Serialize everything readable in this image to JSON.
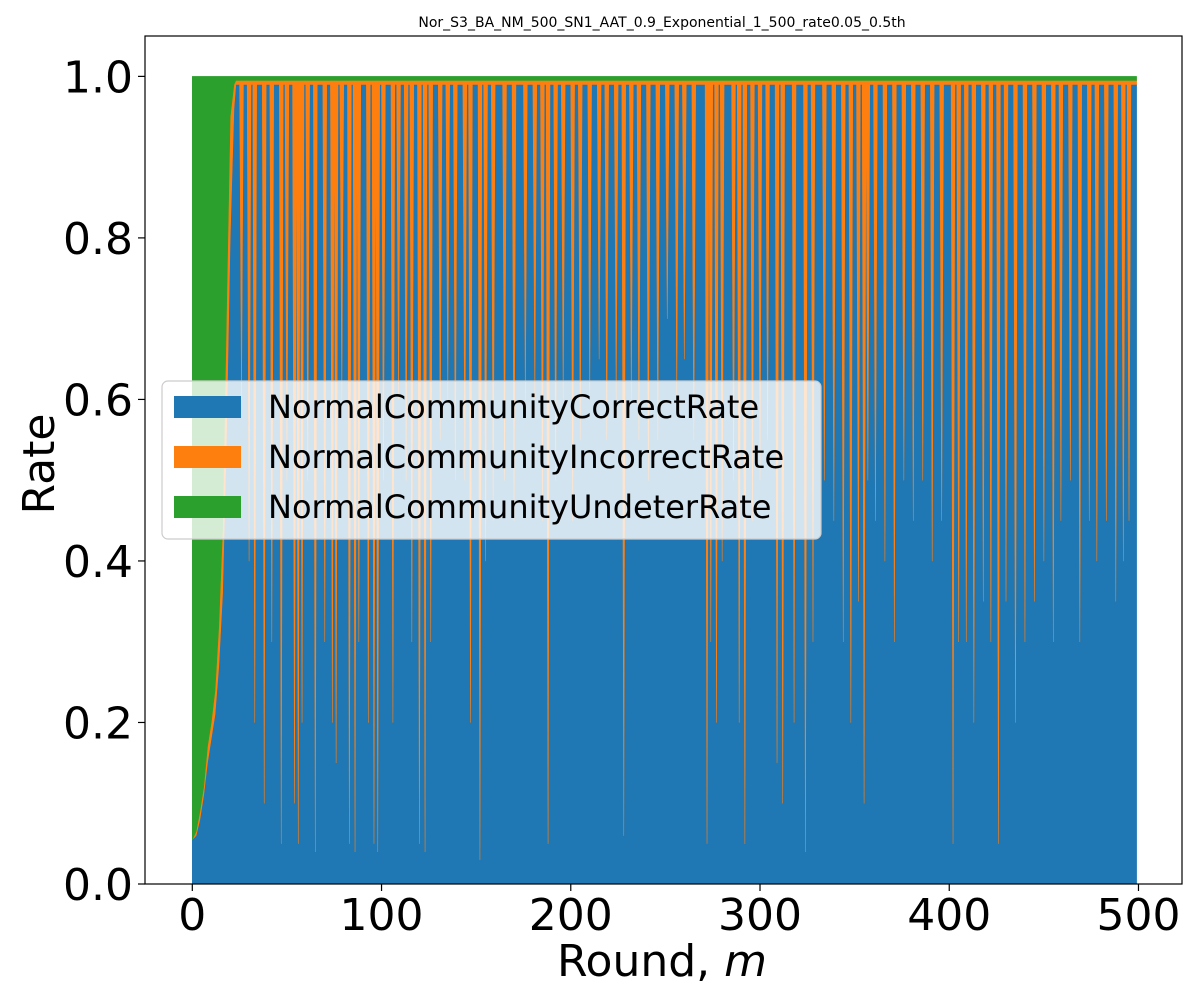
{
  "chart_data": {
    "type": "area",
    "stacked": true,
    "title": "Nor_S3_BA_NM_500_SN1_AAT_0.9_Exponential_1_500_rate0.05_0.5th",
    "xlabel": "Round, ",
    "xlabel_italic": "m",
    "ylabel": "Rate",
    "xlim": [
      -25,
      523
    ],
    "ylim": [
      0.0,
      1.05
    ],
    "x_range": [
      0,
      499
    ],
    "x_ticks": [
      0,
      100,
      200,
      300,
      400,
      500
    ],
    "x_tick_labels": [
      "0",
      "100",
      "200",
      "300",
      "400",
      "500"
    ],
    "y_ticks": [
      0.0,
      0.2,
      0.4,
      0.6,
      0.8,
      1.0
    ],
    "y_tick_labels": [
      "0.0",
      "0.2",
      "0.4",
      "0.6",
      "0.8",
      "1.0"
    ],
    "grid": false,
    "legend_position": "center-left",
    "series": [
      {
        "name": "NormalCommunityCorrectRate",
        "color": "#1f77b4"
      },
      {
        "name": "NormalCommunityIncorrectRate",
        "color": "#ff7f0e"
      },
      {
        "name": "NormalCommunityUndeterRate",
        "color": "#2ca02c"
      }
    ],
    "ramp": [
      [
        0,
        0.055,
        0.0,
        0.945
      ],
      [
        2,
        0.06,
        0.005,
        0.935
      ],
      [
        4,
        0.08,
        0.01,
        0.91
      ],
      [
        6,
        0.11,
        0.01,
        0.88
      ],
      [
        8,
        0.15,
        0.02,
        0.83
      ],
      [
        10,
        0.18,
        0.02,
        0.8
      ],
      [
        12,
        0.21,
        0.03,
        0.76
      ],
      [
        14,
        0.27,
        0.05,
        0.68
      ],
      [
        16,
        0.36,
        0.08,
        0.56
      ],
      [
        18,
        0.55,
        0.15,
        0.3
      ],
      [
        20,
        0.8,
        0.15,
        0.05
      ],
      [
        22,
        0.96,
        0.03,
        0.01
      ],
      [
        23,
        0.99,
        0.005,
        0.005
      ]
    ],
    "steady_state": {
      "correct": 0.99,
      "incorrect": 0.005,
      "undeter": 0.005
    },
    "dips": [
      [
        26,
        0.6
      ],
      [
        30,
        0.4
      ],
      [
        33,
        0.2
      ],
      [
        38,
        0.1
      ],
      [
        42,
        0.3
      ],
      [
        47,
        0.05
      ],
      [
        50,
        0.5
      ],
      [
        54,
        0.1
      ],
      [
        56,
        0.05
      ],
      [
        58,
        0.2
      ],
      [
        61,
        0.5
      ],
      [
        65,
        0.04
      ],
      [
        70,
        0.3
      ],
      [
        74,
        0.2
      ],
      [
        76,
        0.15
      ],
      [
        79,
        0.6
      ],
      [
        83,
        0.05
      ],
      [
        86,
        0.04
      ],
      [
        88,
        0.3
      ],
      [
        93,
        0.2
      ],
      [
        96,
        0.05
      ],
      [
        98,
        0.04
      ],
      [
        101,
        0.5
      ],
      [
        106,
        0.2
      ],
      [
        109,
        0.6
      ],
      [
        113,
        0.5
      ],
      [
        116,
        0.3
      ],
      [
        120,
        0.05
      ],
      [
        123,
        0.04
      ],
      [
        126,
        0.3
      ],
      [
        131,
        0.55
      ],
      [
        135,
        0.6
      ],
      [
        139,
        0.5
      ],
      [
        144,
        0.5
      ],
      [
        147,
        0.2
      ],
      [
        152,
        0.03
      ],
      [
        155,
        0.4
      ],
      [
        159,
        0.45
      ],
      [
        165,
        0.5
      ],
      [
        170,
        0.45
      ],
      [
        176,
        0.6
      ],
      [
        181,
        0.6
      ],
      [
        185,
        0.45
      ],
      [
        188,
        0.05
      ],
      [
        192,
        0.5
      ],
      [
        196,
        0.6
      ],
      [
        201,
        0.45
      ],
      [
        205,
        0.55
      ],
      [
        210,
        0.6
      ],
      [
        215,
        0.65
      ],
      [
        219,
        0.55
      ],
      [
        224,
        0.6
      ],
      [
        228,
        0.06
      ],
      [
        232,
        0.6
      ],
      [
        236,
        0.55
      ],
      [
        241,
        0.5
      ],
      [
        246,
        0.55
      ],
      [
        251,
        0.7
      ],
      [
        256,
        0.6
      ],
      [
        260,
        0.65
      ],
      [
        265,
        0.55
      ],
      [
        272,
        0.05
      ],
      [
        274,
        0.3
      ],
      [
        277,
        0.2
      ],
      [
        280,
        0.4
      ],
      [
        286,
        0.5
      ],
      [
        289,
        0.2
      ],
      [
        292,
        0.05
      ],
      [
        296,
        0.45
      ],
      [
        300,
        0.5
      ],
      [
        304,
        0.55
      ],
      [
        309,
        0.15
      ],
      [
        312,
        0.1
      ],
      [
        318,
        0.2
      ],
      [
        324,
        0.04
      ],
      [
        328,
        0.3
      ],
      [
        334,
        0.5
      ],
      [
        339,
        0.45
      ],
      [
        344,
        0.3
      ],
      [
        348,
        0.2
      ],
      [
        352,
        0.35
      ],
      [
        355,
        0.1
      ],
      [
        357,
        0.5
      ],
      [
        361,
        0.45
      ],
      [
        366,
        0.4
      ],
      [
        371,
        0.3
      ],
      [
        376,
        0.5
      ],
      [
        381,
        0.45
      ],
      [
        386,
        0.5
      ],
      [
        391,
        0.4
      ],
      [
        396,
        0.45
      ],
      [
        402,
        0.05
      ],
      [
        405,
        0.3
      ],
      [
        409,
        0.3
      ],
      [
        413,
        0.2
      ],
      [
        418,
        0.35
      ],
      [
        422,
        0.3
      ],
      [
        426,
        0.05
      ],
      [
        430,
        0.35
      ],
      [
        435,
        0.2
      ],
      [
        440,
        0.3
      ],
      [
        445,
        0.35
      ],
      [
        450,
        0.4
      ],
      [
        455,
        0.3
      ],
      [
        459,
        0.45
      ],
      [
        464,
        0.5
      ],
      [
        469,
        0.3
      ],
      [
        474,
        0.45
      ],
      [
        478,
        0.4
      ],
      [
        483,
        0.45
      ],
      [
        488,
        0.35
      ],
      [
        492,
        0.4
      ],
      [
        495,
        0.45
      ]
    ]
  }
}
